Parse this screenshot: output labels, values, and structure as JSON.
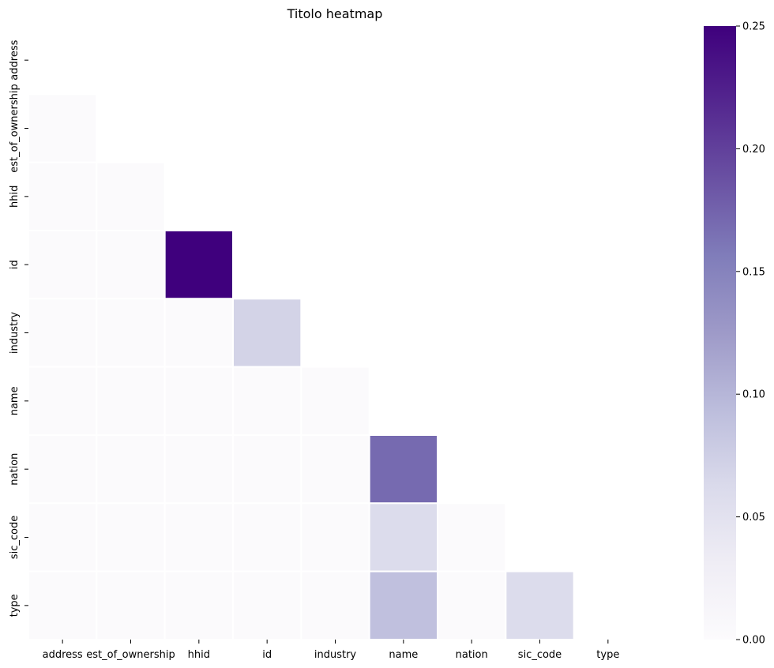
{
  "chart_data": {
    "type": "heatmap",
    "title": "Titolo heatmap",
    "categories": [
      "address",
      "est_of_ownership",
      "hhid",
      "id",
      "industry",
      "name",
      "nation",
      "sic_code",
      "type"
    ],
    "mask": "upper-triangle-including-diagonal",
    "matrix": [
      [
        null,
        null,
        null,
        null,
        null,
        null,
        null,
        null,
        null
      ],
      [
        0.002,
        null,
        null,
        null,
        null,
        null,
        null,
        null,
        null
      ],
      [
        0.002,
        0.002,
        null,
        null,
        null,
        null,
        null,
        null,
        null
      ],
      [
        0.002,
        0.002,
        0.25,
        null,
        null,
        null,
        null,
        null,
        null
      ],
      [
        0.002,
        0.002,
        0.002,
        0.07,
        null,
        null,
        null,
        null,
        null
      ],
      [
        0.002,
        0.002,
        0.002,
        0.002,
        0.002,
        null,
        null,
        null,
        null
      ],
      [
        0.002,
        0.002,
        0.002,
        0.002,
        0.002,
        0.17,
        null,
        null,
        null
      ],
      [
        0.002,
        0.002,
        0.002,
        0.002,
        0.002,
        0.06,
        0.003,
        null,
        null
      ],
      [
        0.002,
        0.002,
        0.002,
        0.002,
        0.002,
        0.09,
        0.003,
        0.06,
        null
      ]
    ],
    "colorbar": {
      "min": 0.0,
      "max": 0.25,
      "ticks": [
        "0.00",
        "0.05",
        "0.10",
        "0.15",
        "0.20",
        "0.25"
      ],
      "colormap": "Purples",
      "stops": [
        "#fcfbfd",
        "#efedf5",
        "#dadaeb",
        "#bcbddc",
        "#9e9ac8",
        "#807dba",
        "#6a51a3",
        "#54278f",
        "#3f007d"
      ]
    },
    "grid": false,
    "cell_border_color": "#ffffff"
  }
}
